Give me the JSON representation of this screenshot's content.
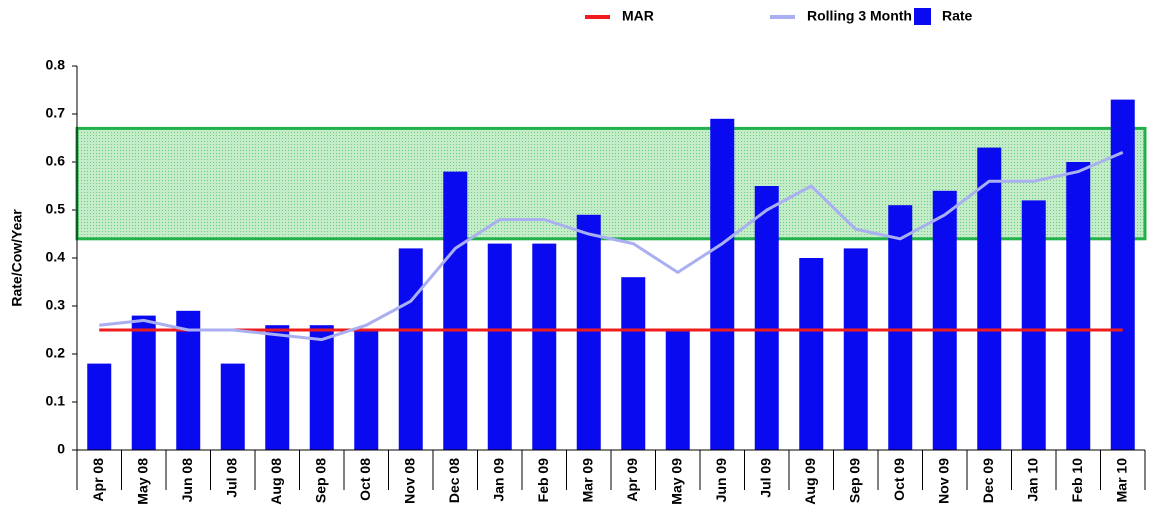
{
  "chart_data": {
    "type": "bar",
    "y_label": "Rate/Cow/Year",
    "categories": [
      "Apr 08",
      "May 08",
      "Jun 08",
      "Jul 08",
      "Aug 08",
      "Sep 08",
      "Oct 08",
      "Nov 08",
      "Dec 08",
      "Jan 09",
      "Feb 09",
      "Mar 09",
      "Apr 09",
      "May 09",
      "Jun 09",
      "Jul 09",
      "Aug 09",
      "Sep 09",
      "Oct 09",
      "Nov 09",
      "Dec 09",
      "Jan 10",
      "Feb 10",
      "Mar 10"
    ],
    "series": [
      {
        "name": "MAR",
        "kind": "line",
        "color": "#ee1c1c",
        "values": [
          0.25,
          0.25,
          0.25,
          0.25,
          0.25,
          0.25,
          0.25,
          0.25,
          0.25,
          0.25,
          0.25,
          0.25,
          0.25,
          0.25,
          0.25,
          0.25,
          0.25,
          0.25,
          0.25,
          0.25,
          0.25,
          0.25,
          0.25,
          0.25
        ]
      },
      {
        "name": "Rolling 3 Month",
        "kind": "line",
        "color": "#a9aff0",
        "values": [
          0.26,
          0.27,
          0.25,
          0.25,
          0.24,
          0.23,
          0.26,
          0.31,
          0.42,
          0.48,
          0.48,
          0.45,
          0.43,
          0.37,
          0.43,
          0.5,
          0.55,
          0.46,
          0.44,
          0.49,
          0.56,
          0.56,
          0.58,
          0.62
        ]
      },
      {
        "name": "Rate",
        "kind": "bar",
        "color": "#0a0af0",
        "values": [
          0.18,
          0.28,
          0.29,
          0.18,
          0.26,
          0.26,
          0.25,
          0.42,
          0.58,
          0.43,
          0.43,
          0.49,
          0.36,
          0.25,
          0.69,
          0.55,
          0.4,
          0.42,
          0.51,
          0.54,
          0.63,
          0.52,
          0.6,
          0.73
        ]
      }
    ],
    "target_band": [
      0.44,
      0.67
    ],
    "band_color": "#22b04a",
    "ylim": [
      0,
      0.8
    ],
    "yticks": [
      0,
      0.1,
      0.2,
      0.3,
      0.4,
      0.5,
      0.6,
      0.7,
      0.8
    ],
    "grid": false
  }
}
